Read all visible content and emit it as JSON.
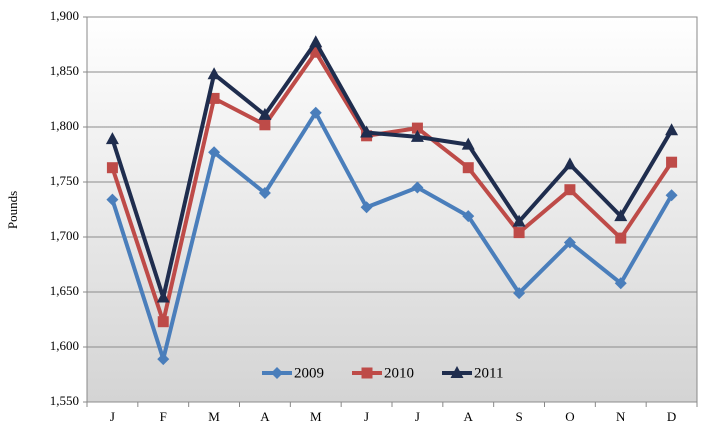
{
  "chart_data": {
    "type": "line",
    "y_label": "Pounds",
    "categories": [
      "J",
      "F",
      "M",
      "A",
      "M",
      "J",
      "J",
      "A",
      "S",
      "O",
      "N",
      "D"
    ],
    "series": [
      {
        "name": "2009",
        "color": "#4a7ebb",
        "marker": "diamond",
        "values": [
          1734,
          1589,
          1777,
          1740,
          1813,
          1727,
          1745,
          1719,
          1649,
          1695,
          1658,
          1738
        ]
      },
      {
        "name": "2010",
        "color": "#be4b48",
        "marker": "square",
        "values": [
          1763,
          1623,
          1826,
          1802,
          1868,
          1792,
          1799,
          1763,
          1704,
          1743,
          1699,
          1768
        ]
      },
      {
        "name": "2011",
        "color": "#1f2d4e",
        "marker": "triangle",
        "values": [
          1789,
          1645,
          1848,
          1811,
          1877,
          1795,
          1791,
          1784,
          1714,
          1766,
          1719,
          1797
        ]
      }
    ],
    "ylim": [
      1550,
      1900
    ],
    "yticks": [
      {
        "value": 1550,
        "label": "1,550"
      },
      {
        "value": 1600,
        "label": "1,600"
      },
      {
        "value": 1650,
        "label": "1,650"
      },
      {
        "value": 1700,
        "label": "1,700"
      },
      {
        "value": 1750,
        "label": "1,750"
      },
      {
        "value": 1800,
        "label": "1,800"
      },
      {
        "value": 1850,
        "label": "1,850"
      },
      {
        "value": 1900,
        "label": "1,900"
      }
    ],
    "grid": true,
    "legend": "bottom"
  }
}
